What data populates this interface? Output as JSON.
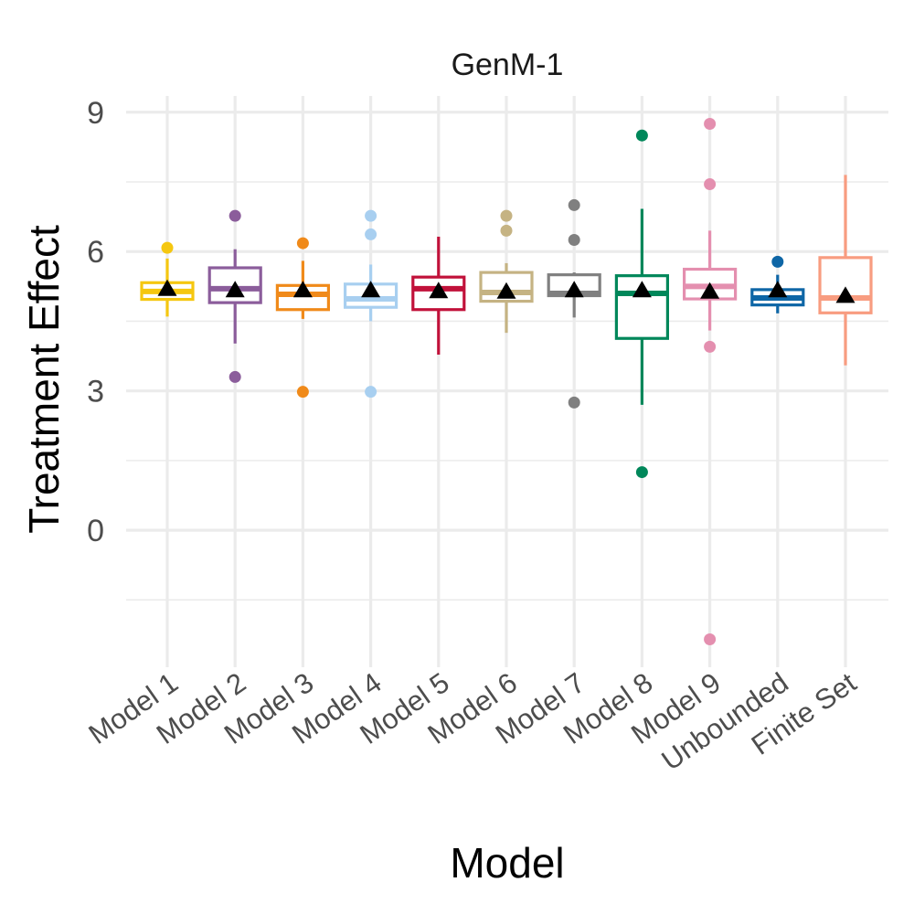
{
  "chart_data": {
    "type": "boxplot",
    "title": "GenM-1",
    "xlabel": "Model",
    "ylabel": "Treatment Effect",
    "ylim": [
      -2.95,
      9.35
    ],
    "yticks": [
      0,
      3,
      6,
      9
    ],
    "ytick_labels": [
      "0",
      "3",
      "6",
      "9"
    ],
    "grid": true,
    "mean_marker": "triangle",
    "categories": [
      "Model 1",
      "Model 2",
      "Model 3",
      "Model 4",
      "Model 5",
      "Model 6",
      "Model 7",
      "Model 8",
      "Model 9",
      "Unbounded",
      "Finite Set"
    ],
    "colors": [
      "#F5C710",
      "#8B5D9B",
      "#F08A1A",
      "#A8CFF0",
      "#C1113A",
      "#C5B383",
      "#808080",
      "#00875A",
      "#E48FAF",
      "#0E66A6",
      "#F89C80"
    ],
    "series": [
      {
        "name": "Model 1",
        "min": 4.6,
        "q1": 4.97,
        "median": 5.14,
        "q3": 5.33,
        "max": 5.85,
        "mean": 5.18,
        "outliers": [
          6.08
        ]
      },
      {
        "name": "Model 2",
        "min": 4.02,
        "q1": 4.9,
        "median": 5.2,
        "q3": 5.65,
        "max": 6.05,
        "mean": 5.15,
        "outliers": [
          6.77,
          3.3
        ]
      },
      {
        "name": "Model 3",
        "min": 4.55,
        "q1": 4.75,
        "median": 5.08,
        "q3": 5.27,
        "max": 5.8,
        "mean": 5.15,
        "outliers": [
          6.18,
          2.98
        ]
      },
      {
        "name": "Model 4",
        "min": 4.5,
        "q1": 4.8,
        "median": 4.98,
        "q3": 5.3,
        "max": 5.72,
        "mean": 5.15,
        "outliers": [
          6.77,
          6.37,
          2.98
        ]
      },
      {
        "name": "Model 5",
        "min": 3.78,
        "q1": 4.75,
        "median": 5.2,
        "q3": 5.45,
        "max": 6.32,
        "mean": 5.13,
        "outliers": []
      },
      {
        "name": "Model 6",
        "min": 4.25,
        "q1": 4.93,
        "median": 5.12,
        "q3": 5.55,
        "max": 5.75,
        "mean": 5.12,
        "outliers": [
          6.77,
          6.45
        ]
      },
      {
        "name": "Model 7",
        "min": 4.58,
        "q1": 5.05,
        "median": 5.1,
        "q3": 5.5,
        "max": 5.55,
        "mean": 5.15,
        "outliers": [
          7.0,
          6.25,
          2.75
        ]
      },
      {
        "name": "Model 8",
        "min": 2.7,
        "q1": 4.13,
        "median": 5.1,
        "q3": 5.48,
        "max": 6.92,
        "mean": 5.15,
        "outliers": [
          8.5,
          1.25
        ]
      },
      {
        "name": "Model 9",
        "min": 4.3,
        "q1": 4.98,
        "median": 5.25,
        "q3": 5.62,
        "max": 6.45,
        "mean": 5.12,
        "outliers": [
          8.75,
          7.45,
          3.95,
          -2.35
        ]
      },
      {
        "name": "Unbounded",
        "min": 4.67,
        "q1": 4.85,
        "median": 5.0,
        "q3": 5.18,
        "max": 5.5,
        "mean": 5.15,
        "outliers": [
          5.78
        ]
      },
      {
        "name": "Finite Set",
        "min": 3.55,
        "q1": 4.68,
        "median": 5.0,
        "q3": 5.87,
        "max": 7.65,
        "mean": 5.03,
        "outliers": []
      }
    ]
  }
}
